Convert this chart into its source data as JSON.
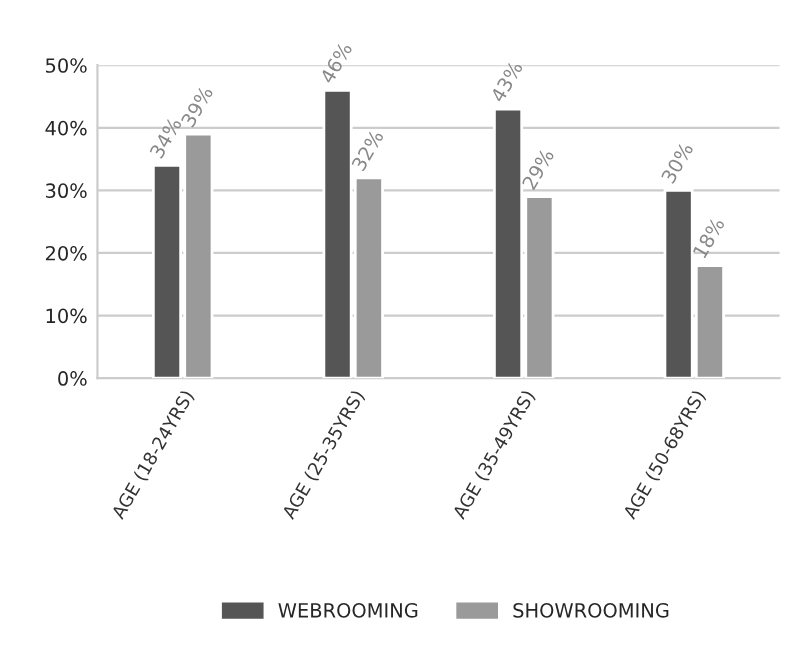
{
  "chart_data": {
    "type": "bar",
    "categories": [
      "AGE (18-24YRS)",
      "AGE (25-35YRS)",
      "AGE (35-49YRS)",
      "AGE (50-68YRS)"
    ],
    "series": [
      {
        "name": "WEBROOMING",
        "color": "#555555",
        "values": [
          34,
          46,
          43,
          30
        ],
        "value_labels": [
          "34%",
          "46%",
          "43%",
          "30%"
        ]
      },
      {
        "name": "SHOWROOMING",
        "color": "#9a9a9a",
        "values": [
          39,
          32,
          29,
          18
        ],
        "value_labels": [
          "39%",
          "32%",
          "29%",
          "18%"
        ]
      }
    ],
    "ylim": [
      0,
      50
    ],
    "yticks": [
      {
        "value": 0,
        "label": "0%"
      },
      {
        "value": 10,
        "label": "10%"
      },
      {
        "value": 20,
        "label": "20%"
      },
      {
        "value": 30,
        "label": "30%"
      },
      {
        "value": 40,
        "label": "40%"
      },
      {
        "value": 50,
        "label": "50%"
      }
    ],
    "grid": "y",
    "legend": "bottom"
  }
}
